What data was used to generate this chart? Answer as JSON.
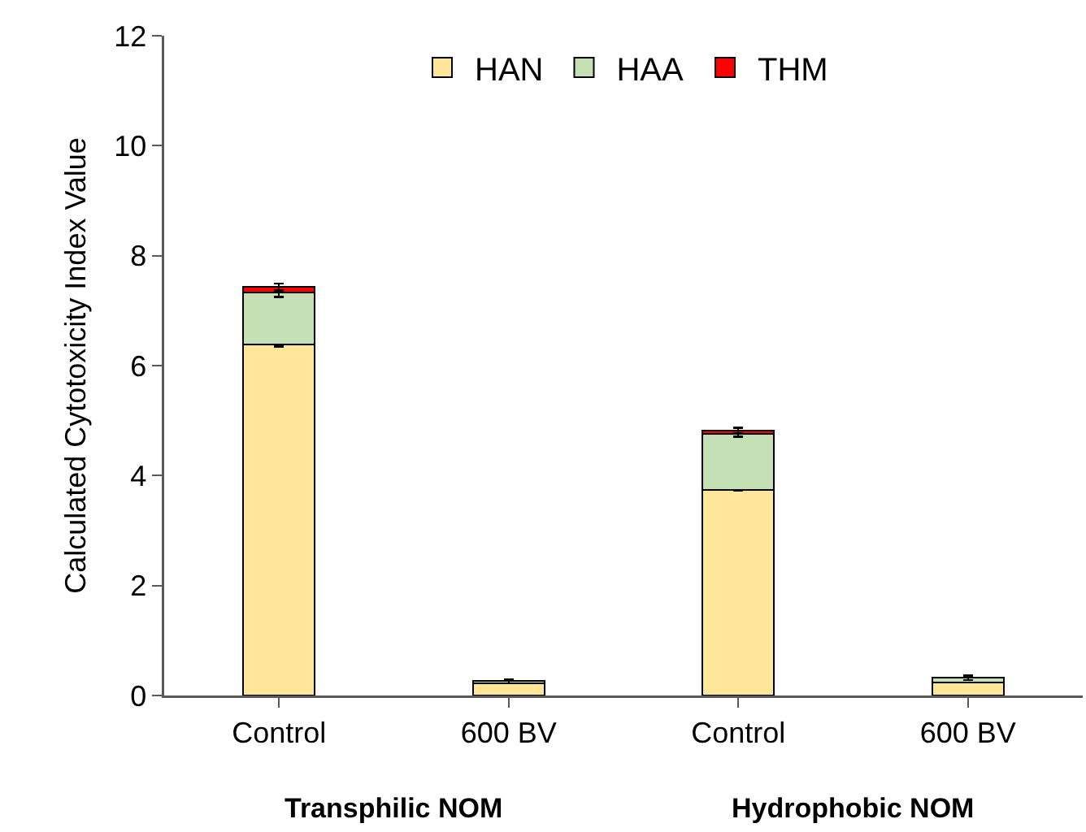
{
  "chart_data": {
    "type": "bar",
    "stacked": true,
    "ylabel": "Calculated Cytotoxicity Index Value",
    "categories": [
      "Control",
      "600 BV",
      "Control",
      "600 BV"
    ],
    "series": [
      {
        "name": "HAN",
        "color": "#ffe699",
        "values": [
          6.38,
          0.22,
          3.74,
          0.24
        ],
        "errors": [
          0.03,
          null,
          0.02,
          null
        ]
      },
      {
        "name": "HAA",
        "color": "#c5e0b4",
        "values": [
          0.95,
          0.04,
          1.02,
          0.08
        ],
        "errors": [
          0.08,
          0.04,
          0.05,
          0.04
        ]
      },
      {
        "name": "THM",
        "color": "#ff0000",
        "values": [
          0.1,
          null,
          0.06,
          null
        ],
        "errors": [
          0.06,
          null,
          0.05,
          null
        ]
      }
    ],
    "ylim": [
      0,
      12
    ],
    "yticks": [
      0,
      2,
      4,
      6,
      8,
      10,
      12
    ],
    "grid": false,
    "legend": "top",
    "annotations": [
      "Transphilic NOM",
      "Hydrophobic NOM"
    ]
  }
}
